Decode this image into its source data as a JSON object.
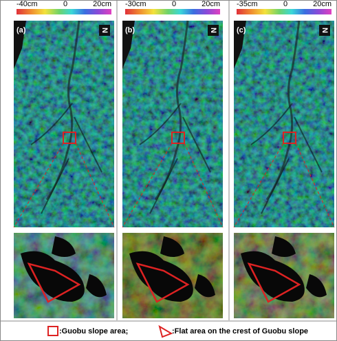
{
  "panels": [
    {
      "label": "(a)",
      "colorbar": {
        "min_label": "-40cm",
        "mid_label": "0",
        "max_label": "20cm"
      },
      "north": "N"
    },
    {
      "label": "(b)",
      "colorbar": {
        "min_label": "-30cm",
        "mid_label": "0",
        "max_label": "20cm"
      },
      "north": "N"
    },
    {
      "label": "(c)",
      "colorbar": {
        "min_label": "-35cm",
        "mid_label": "0",
        "max_label": "20cm"
      },
      "north": "N"
    }
  ],
  "legend": {
    "square_text": ":Guobu slope area;",
    "polygon_text": ":Flat area on the crest of Guobu slope"
  }
}
